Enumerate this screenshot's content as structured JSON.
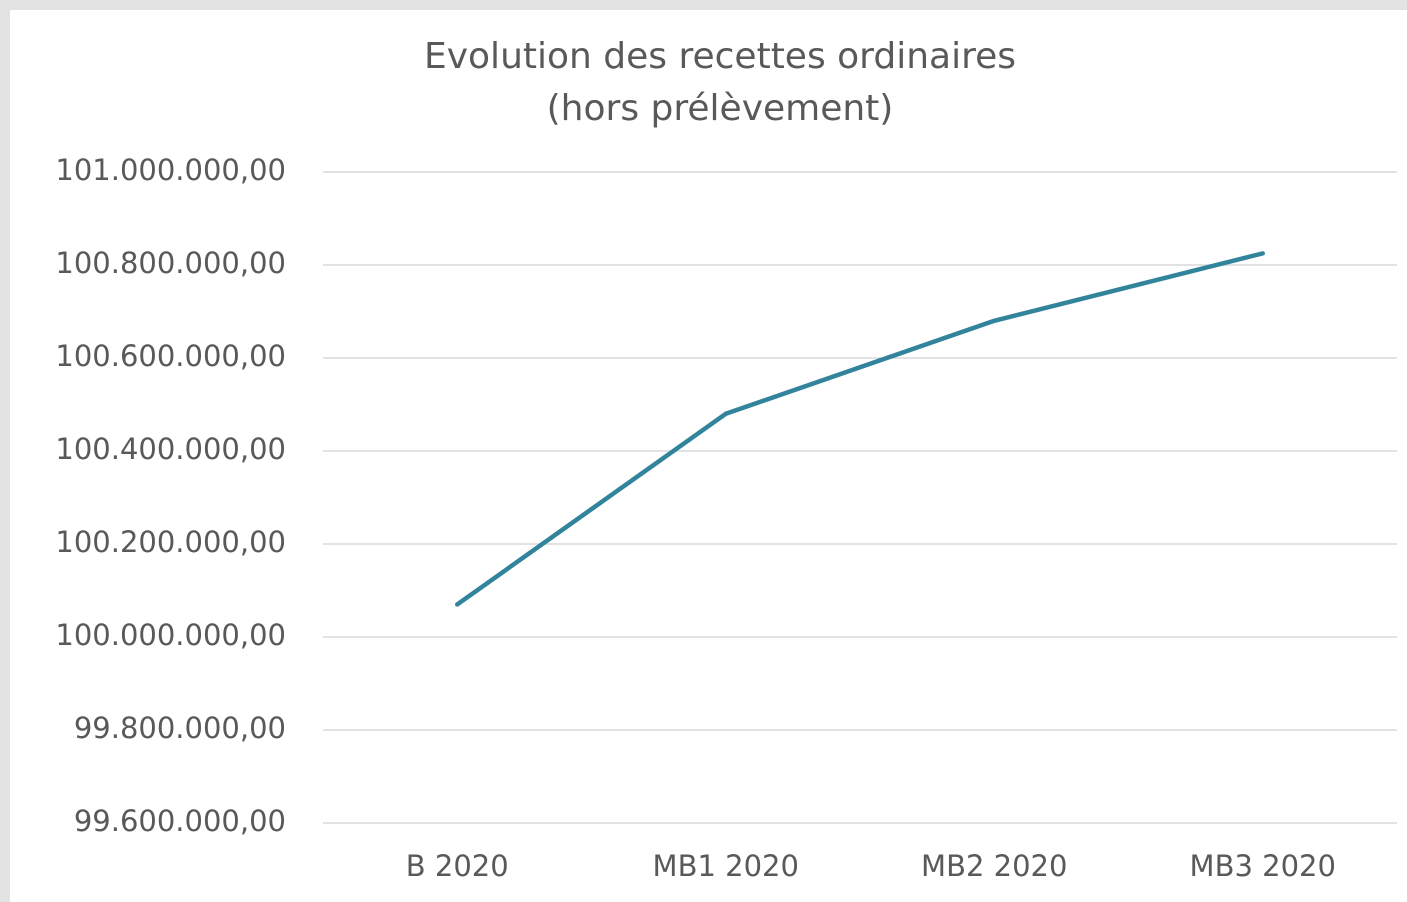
{
  "chart_data": {
    "type": "line",
    "title": [
      "Evolution des recettes ordinaires",
      "(hors prélèvement)"
    ],
    "categories": [
      "B 2020",
      "MB1 2020",
      "MB2 2020",
      "MB3 2020"
    ],
    "series": [
      {
        "color": "#31849b",
        "values": [
          100070000,
          100480000,
          100680000,
          100825000
        ]
      }
    ],
    "ylim": [
      99600000,
      101000000
    ],
    "yticks": [
      {
        "value": 99600000,
        "label": "99.600.000,00"
      },
      {
        "value": 99800000,
        "label": "99.800.000,00"
      },
      {
        "value": 100000000,
        "label": "100.000.000,00"
      },
      {
        "value": 100200000,
        "label": "100.200.000,00"
      },
      {
        "value": 100400000,
        "label": "100.400.000,00"
      },
      {
        "value": 100600000,
        "label": "100.600.000,00"
      },
      {
        "value": 100800000,
        "label": "100.800.000,00"
      },
      {
        "value": 101000000,
        "label": "101.000.000,00"
      }
    ],
    "grid": true
  }
}
